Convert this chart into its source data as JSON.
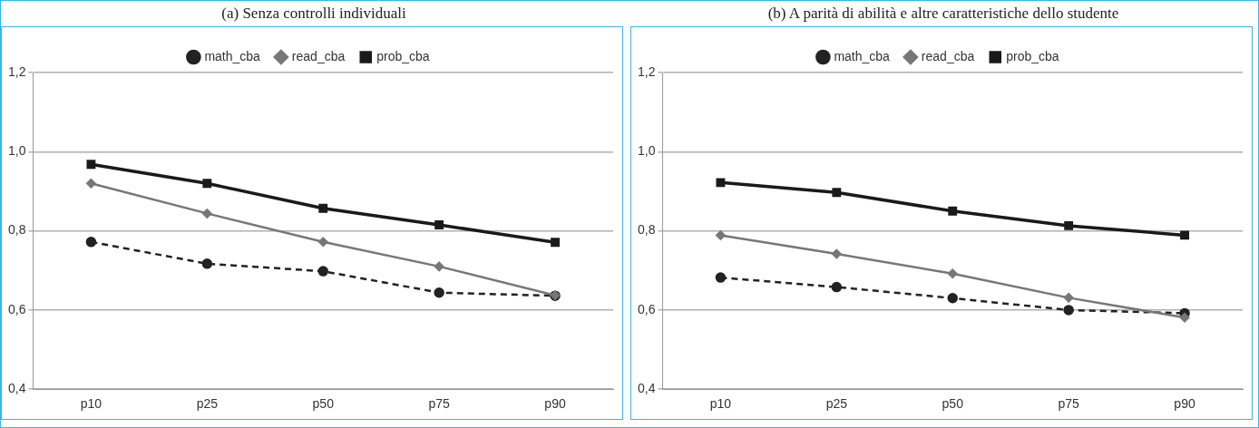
{
  "chart_data": [
    {
      "type": "line",
      "title": "(a) Senza controlli individuali",
      "categories": [
        "p10",
        "p25",
        "p50",
        "p75",
        "p90"
      ],
      "series": [
        {
          "name": "math_cba",
          "color": "#222222",
          "line_style": "dashed",
          "marker": "circle",
          "values": [
            0.772,
            0.717,
            0.698,
            0.644,
            0.636
          ]
        },
        {
          "name": "read_cba",
          "color": "#777777",
          "line_style": "solid",
          "marker": "diamond",
          "values": [
            0.92,
            0.844,
            0.772,
            0.71,
            0.637
          ]
        },
        {
          "name": "prob_cba",
          "color": "#1a1a1a",
          "line_style": "solid",
          "marker": "square",
          "values": [
            0.968,
            0.92,
            0.857,
            0.815,
            0.771
          ]
        }
      ],
      "ylim": [
        0.4,
        1.2
      ],
      "yticks": [
        {
          "value": 0.4,
          "label": "0,4"
        },
        {
          "value": 0.6,
          "label": "0,6"
        },
        {
          "value": 0.8,
          "label": "0,8"
        },
        {
          "value": 1.0,
          "label": "1,0"
        },
        {
          "value": 1.2,
          "label": "1,2"
        }
      ],
      "grid": "y",
      "legend": "top"
    },
    {
      "type": "line",
      "title": "(b) A parità di abilità e altre caratteristiche dello studente",
      "categories": [
        "p10",
        "p25",
        "p50",
        "p75",
        "p90"
      ],
      "series": [
        {
          "name": "math_cba",
          "color": "#222222",
          "line_style": "dashed",
          "marker": "circle",
          "values": [
            0.682,
            0.658,
            0.63,
            0.6,
            0.592
          ]
        },
        {
          "name": "read_cba",
          "color": "#777777",
          "line_style": "solid",
          "marker": "diamond",
          "values": [
            0.789,
            0.742,
            0.692,
            0.631,
            0.581
          ]
        },
        {
          "name": "prob_cba",
          "color": "#1a1a1a",
          "line_style": "solid",
          "marker": "square",
          "values": [
            0.922,
            0.897,
            0.85,
            0.813,
            0.789
          ]
        }
      ],
      "ylim": [
        0.4,
        1.2
      ],
      "yticks": [
        {
          "value": 0.4,
          "label": "0,4"
        },
        {
          "value": 0.6,
          "label": "0,6"
        },
        {
          "value": 0.8,
          "label": "0,8"
        },
        {
          "value": 1.0,
          "label": "1,0"
        },
        {
          "value": 1.2,
          "label": "1,2"
        }
      ],
      "grid": "y",
      "legend": "top"
    }
  ]
}
